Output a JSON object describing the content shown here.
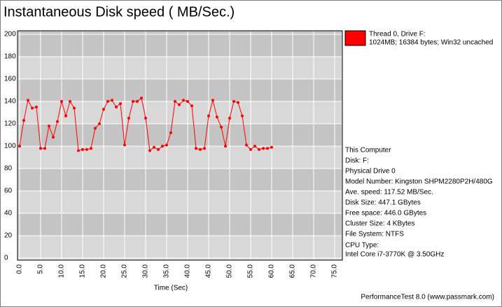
{
  "chart_data": {
    "type": "line",
    "title": "Instantaneous Disk speed ( MB/Sec.)",
    "x_label": "Time (Sec)",
    "x": [
      0,
      1,
      2,
      3,
      4,
      5,
      6,
      7,
      8,
      9,
      10,
      11,
      12,
      13,
      14,
      15,
      16,
      17,
      18,
      19,
      20,
      21,
      22,
      23,
      24,
      25,
      26,
      27,
      28,
      29,
      30,
      31,
      32,
      33,
      34,
      35,
      36,
      37,
      38,
      39,
      40,
      41,
      42,
      43,
      44,
      45,
      46,
      47,
      48,
      49,
      50,
      51,
      52,
      53,
      54,
      55,
      56,
      57,
      58,
      59,
      60
    ],
    "series": [
      {
        "name": "Thread 0, Drive F:",
        "description": "1024MB; 16384 bytes; Win32 uncached",
        "color": "#ff0000",
        "values": [
          100,
          123,
          141,
          134,
          135,
          98,
          98,
          118,
          108,
          122,
          140,
          127,
          140,
          134,
          96,
          97,
          97,
          98,
          116,
          120,
          133,
          140,
          141,
          135,
          138,
          101,
          125,
          140,
          140,
          143,
          125,
          96,
          99,
          97,
          100,
          101,
          112,
          140,
          137,
          141,
          140,
          136,
          98,
          97,
          98,
          127,
          141,
          126,
          117,
          100,
          125,
          140,
          139,
          127,
          101,
          97,
          100,
          97,
          98,
          98,
          99
        ]
      }
    ],
    "xlim": [
      0,
      75
    ],
    "xticks": [
      {
        "value": 0,
        "label": "0.0"
      },
      {
        "value": 5,
        "label": "5.0"
      },
      {
        "value": 10,
        "label": "10.0"
      },
      {
        "value": 15,
        "label": "15.0"
      },
      {
        "value": 20,
        "label": "20.0"
      },
      {
        "value": 25,
        "label": "25.0"
      },
      {
        "value": 30,
        "label": "30.0"
      },
      {
        "value": 35,
        "label": "35.0"
      },
      {
        "value": 40,
        "label": "40.0"
      },
      {
        "value": 45,
        "label": "45.0"
      },
      {
        "value": 50,
        "label": "50.0"
      },
      {
        "value": 55,
        "label": "55.0"
      },
      {
        "value": 60,
        "label": "60.0"
      },
      {
        "value": 65,
        "label": "65.0"
      },
      {
        "value": 70,
        "label": "70.0"
      },
      {
        "value": 75,
        "label": "75.0"
      }
    ],
    "ylim": [
      0,
      200
    ],
    "yticks": [
      0,
      20,
      40,
      60,
      80,
      100,
      120,
      140,
      160,
      180,
      200
    ],
    "grid": true,
    "legend": "top-right",
    "info": [
      "This Computer",
      "Disk: F:",
      "Physical Drive 0",
      "Model Number: Kingston SHPM2280P2H/480G",
      "Ave. speed: 117.52 MB/Sec.",
      "Disk Size: 447.1 GBytes",
      "Free space: 446.0 GBytes",
      "Cluster Size: 4 KBytes",
      "File System: NTFS",
      "CPU Type:",
      "Intel Core i7-3770K @ 3.50GHz"
    ],
    "footer": "PerformanceTest 8.0 (www.passmark.com)"
  }
}
